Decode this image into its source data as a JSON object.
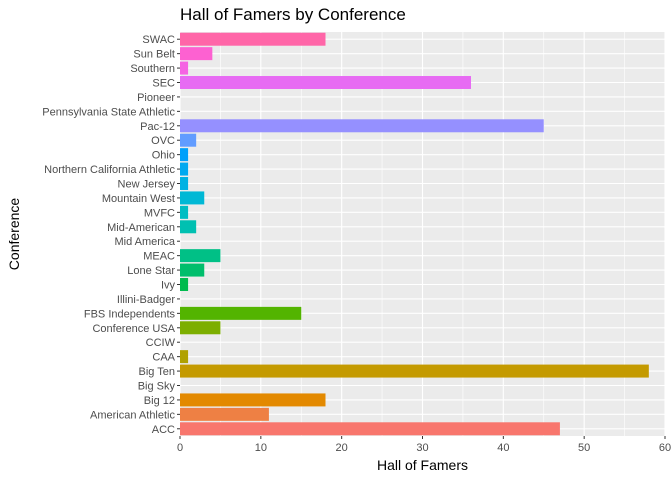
{
  "chart_data": {
    "type": "bar",
    "orientation": "horizontal",
    "title": "Hall of Famers by Conference",
    "xlabel": "Hall of Famers",
    "ylabel": "Conference",
    "xlim": [
      0,
      60
    ],
    "xticks": [
      0,
      10,
      20,
      30,
      40,
      50,
      60
    ],
    "grid": true,
    "legend": "none",
    "categories": [
      "ACC",
      "American Athletic",
      "Big 12",
      "Big Sky",
      "Big Ten",
      "CAA",
      "CCIW",
      "Conference USA",
      "FBS Independents",
      "Illini-Badger",
      "Ivy",
      "Lone Star",
      "MEAC",
      "Mid America",
      "Mid-American",
      "MVFC",
      "Mountain West",
      "New Jersey",
      "Northern California Athletic",
      "Ohio",
      "OVC",
      "Pac-12",
      "Pennsylvania State Athletic",
      "Pioneer",
      "SEC",
      "Southern",
      "Sun Belt",
      "SWAC"
    ],
    "values": [
      47,
      11,
      18,
      0,
      58,
      1,
      0,
      5,
      15,
      0,
      1,
      3,
      5,
      0,
      2,
      1,
      3,
      1,
      1,
      1,
      2,
      45,
      0,
      0,
      36,
      1,
      4,
      18
    ],
    "colors": [
      "#F8766D",
      "#EE8044",
      "#E38900",
      "#D59100",
      "#C49A00",
      "#B0A100",
      "#99A800",
      "#7CAE00",
      "#53B400",
      "#00B81B",
      "#00BB4E",
      "#00BE6C",
      "#00C086",
      "#00C19C",
      "#00C0B1",
      "#00BDC3",
      "#00B8D5",
      "#00B2E3",
      "#00A9F0",
      "#00A0FA",
      "#619CFF",
      "#9590FF",
      "#B983FF",
      "#D475FA",
      "#E76BF3",
      "#F564E3",
      "#FD61D1",
      "#FF66A8"
    ]
  }
}
